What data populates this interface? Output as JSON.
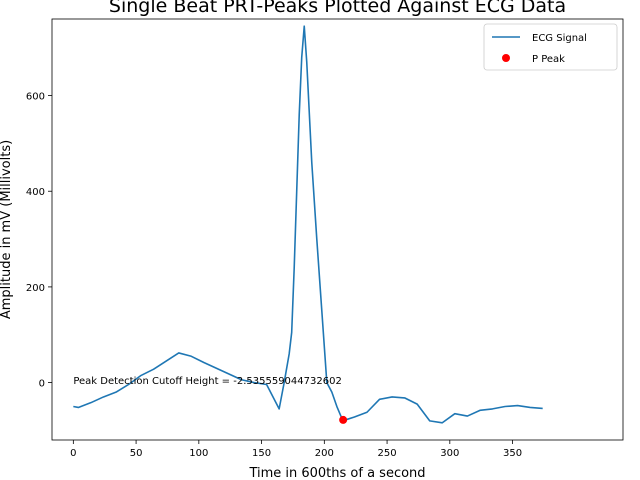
{
  "chart_data": {
    "type": "line",
    "title": "Single Beat PRT-Peaks Plotted Against ECG Data",
    "xlabel": "Time in 600ths of a second",
    "ylabel": "Amplitude in mV (Millivolts)",
    "xlim": [
      -17,
      438
    ],
    "ylim": [
      -120,
      760
    ],
    "xticks": [
      0,
      50,
      100,
      150,
      200,
      250,
      300,
      350
    ],
    "yticks": [
      0,
      200,
      400,
      600
    ],
    "grid": false,
    "legend_position": "top-right",
    "series": [
      {
        "name": "ECG Signal",
        "color": "#1f77b4",
        "kind": "line",
        "x": [
          0,
          4,
          14,
          24,
          34,
          44,
          54,
          64,
          74,
          84,
          94,
          104,
          114,
          124,
          134,
          144,
          154,
          164,
          168,
          172,
          174,
          176,
          178,
          180,
          182,
          184,
          186,
          190,
          194,
          198,
          202,
          206,
          210,
          214,
          218,
          224,
          234,
          244,
          254,
          264,
          274,
          284,
          294,
          304,
          314,
          324,
          334,
          344,
          354,
          364,
          374
        ],
        "y": [
          -50,
          -52,
          -42,
          -30,
          -20,
          -4,
          15,
          28,
          45,
          62,
          55,
          42,
          30,
          18,
          6,
          0,
          -4,
          -55,
          0,
          60,
          105,
          240,
          400,
          560,
          680,
          745,
          670,
          460,
          300,
          150,
          0,
          -20,
          -50,
          -75,
          -77,
          -72,
          -62,
          -35,
          -30,
          -32,
          -45,
          -80,
          -84,
          -65,
          -70,
          -58,
          -55,
          -50,
          -48,
          -52,
          -54
        ]
      },
      {
        "name": "P Peak",
        "color": "#ff0000",
        "kind": "scatter",
        "x": [
          215
        ],
        "y": [
          -78
        ]
      }
    ],
    "annotations": [
      {
        "text": "Peak Detection Cutoff Height = -2.535559044732602",
        "x": 0,
        "y": -2.535559044732602
      }
    ]
  }
}
